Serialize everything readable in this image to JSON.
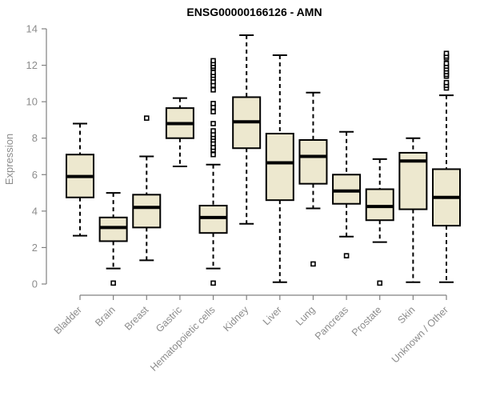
{
  "chart_data": {
    "type": "boxplot",
    "title": "ENSG00000166126 - AMN",
    "ylabel": "Expression",
    "xlabel": "",
    "ylim": [
      0,
      14
    ],
    "yticks": [
      0,
      2,
      4,
      6,
      8,
      10,
      12,
      14
    ],
    "grid": false,
    "legend": false,
    "categories": [
      "Bladder",
      "Brain",
      "Breast",
      "Gastric",
      "Hematopoietic cells",
      "Kidney",
      "Liver",
      "Lung",
      "Pancreas",
      "Prostate",
      "Skin",
      "Unknown / Other"
    ],
    "boxes": [
      {
        "category": "Bladder",
        "whisker_low": 2.65,
        "q1": 4.75,
        "median": 5.9,
        "q3": 7.1,
        "whisker_high": 8.8,
        "outliers": []
      },
      {
        "category": "Brain",
        "whisker_low": 0.85,
        "q1": 2.35,
        "median": 3.1,
        "q3": 3.65,
        "whisker_high": 5.0,
        "outliers": [
          0.05
        ]
      },
      {
        "category": "Breast",
        "whisker_low": 1.3,
        "q1": 3.1,
        "median": 4.2,
        "q3": 4.9,
        "whisker_high": 7.0,
        "outliers": [
          9.1
        ]
      },
      {
        "category": "Gastric",
        "whisker_low": 6.45,
        "q1": 8.0,
        "median": 8.8,
        "q3": 9.65,
        "whisker_high": 10.2,
        "outliers": []
      },
      {
        "category": "Hematopoietic cells",
        "whisker_low": 0.85,
        "q1": 2.8,
        "median": 3.65,
        "q3": 4.3,
        "whisker_high": 6.55,
        "outliers": [
          0.05,
          7.1,
          7.35,
          7.5,
          7.7,
          7.9,
          8.05,
          8.2,
          8.4,
          8.8,
          9.45,
          9.7,
          9.9,
          10.65,
          10.9,
          11.1,
          11.3,
          11.45,
          11.6,
          11.85,
          11.95,
          12.1,
          12.25
        ]
      },
      {
        "category": "Kidney",
        "whisker_low": 3.3,
        "q1": 7.45,
        "median": 8.9,
        "q3": 10.25,
        "whisker_high": 13.65,
        "outliers": []
      },
      {
        "category": "Liver",
        "whisker_low": 0.1,
        "q1": 4.6,
        "median": 6.65,
        "q3": 8.25,
        "whisker_high": 12.55,
        "outliers": []
      },
      {
        "category": "Lung",
        "whisker_low": 4.15,
        "q1": 5.5,
        "median": 7.0,
        "q3": 7.9,
        "whisker_high": 10.5,
        "outliers": [
          1.1
        ]
      },
      {
        "category": "Pancreas",
        "whisker_low": 2.6,
        "q1": 4.4,
        "median": 5.1,
        "q3": 6.0,
        "whisker_high": 8.35,
        "outliers": [
          1.55
        ]
      },
      {
        "category": "Prostate",
        "whisker_low": 2.3,
        "q1": 3.5,
        "median": 4.25,
        "q3": 5.2,
        "whisker_high": 6.85,
        "outliers": [
          0.05
        ]
      },
      {
        "category": "Skin",
        "whisker_low": 0.1,
        "q1": 4.1,
        "median": 6.75,
        "q3": 7.2,
        "whisker_high": 8.0,
        "outliers": []
      },
      {
        "category": "Unknown / Other",
        "whisker_low": 0.1,
        "q1": 3.2,
        "median": 4.75,
        "q3": 6.3,
        "whisker_high": 10.35,
        "outliers": [
          10.75,
          10.9,
          11.05,
          11.4,
          11.5,
          11.65,
          11.8,
          11.95,
          12.1,
          12.4,
          12.5,
          12.65
        ]
      }
    ],
    "colors": {
      "box_fill": "#EDE8CF",
      "box_stroke": "#000000",
      "median": "#000000",
      "whisker": "#000000",
      "outlier_stroke": "#000000",
      "outlier_fill": "#FFFFFF",
      "axis": "#808080",
      "tick_label": "#8C8C8C",
      "title": "#000000"
    }
  }
}
